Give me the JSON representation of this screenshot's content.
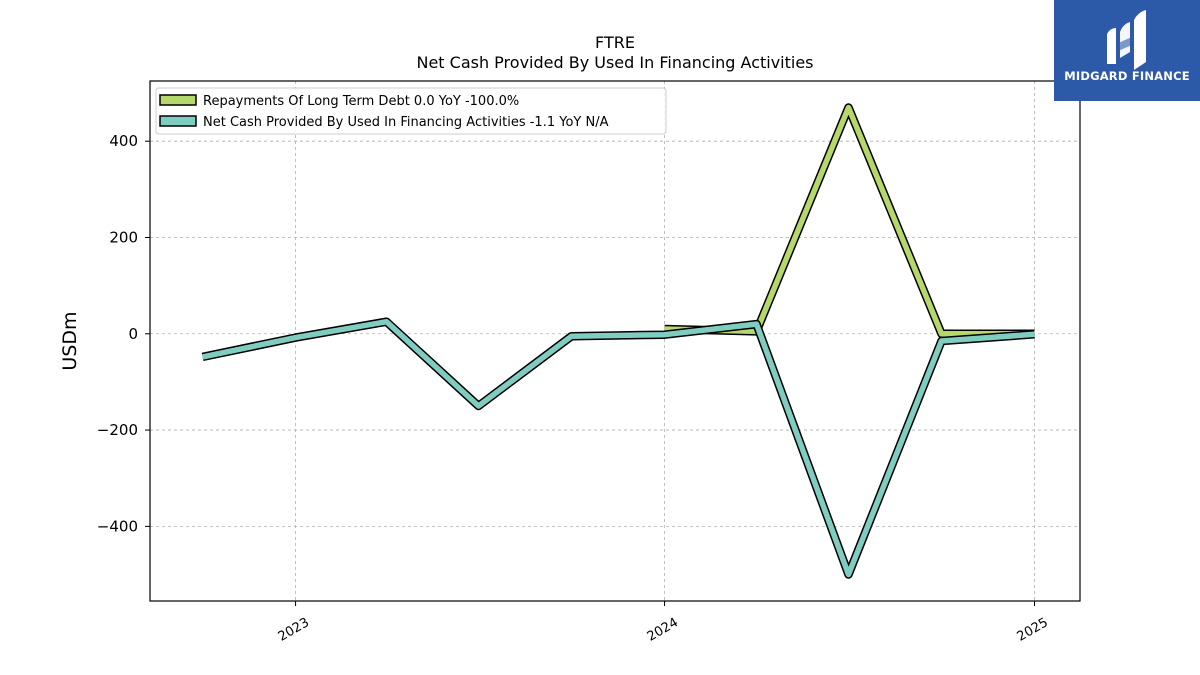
{
  "chart_data": {
    "type": "line",
    "title": "FTRE",
    "subtitle": "Net Cash Provided By Used In Financing Activities",
    "xlabel": "",
    "ylabel": "USDm",
    "x_ticks": [
      "2023",
      "2024",
      "2025"
    ],
    "xlim": [
      "2022-08-10",
      "2025-02-15"
    ],
    "ylim": [
      -555,
      525
    ],
    "y_ticks": [
      -400,
      -200,
      0,
      200,
      400
    ],
    "grid": true,
    "legend_position": "top-left",
    "series": [
      {
        "name": "Repayments Of Long Term Debt",
        "legend_label": "Repayments Of Long Term Debt  0.0 YoY -100.0%",
        "color": "#b5d86a",
        "x": [
          "2024-01-01",
          "2024-04-01",
          "2024-07-01",
          "2024-10-01",
          "2025-01-01"
        ],
        "y": [
          10,
          5,
          470,
          0,
          0
        ]
      },
      {
        "name": "Net Cash Provided By Used In Financing Activities",
        "legend_label": "Net Cash Provided By Used In Financing Activities  -1.1 YoY N/A",
        "color": "#7fcdc0",
        "x": [
          "2022-10-01",
          "2023-01-01",
          "2023-04-01",
          "2023-07-01",
          "2023-10-01",
          "2024-01-01",
          "2024-04-01",
          "2024-07-01",
          "2024-10-01",
          "2025-01-01"
        ],
        "y": [
          -48,
          -8,
          25,
          -150,
          -5,
          -2,
          20,
          -500,
          -15,
          -1.1
        ]
      }
    ]
  },
  "logo": {
    "text": "MIDGARD FINANCE",
    "bg_color": "#2c5aa8"
  }
}
